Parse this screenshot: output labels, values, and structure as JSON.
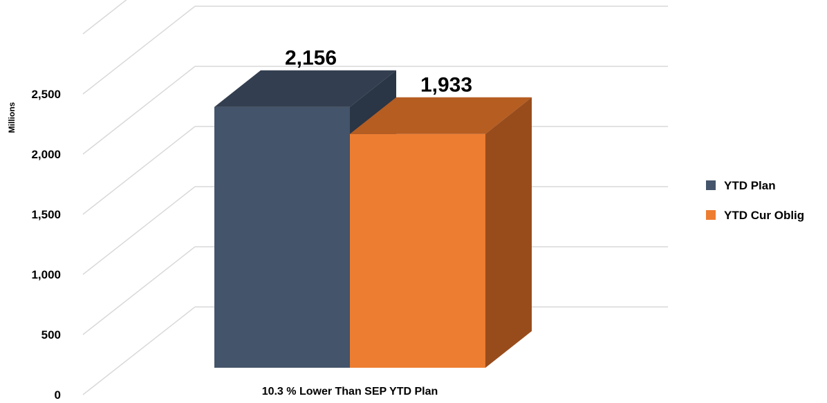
{
  "chart_data": {
    "type": "bar",
    "style": "3d-clustered-column",
    "categories": [
      "10.3 % Lower Than SEP YTD Plan"
    ],
    "series": [
      {
        "name": "YTD Plan",
        "values": [
          2156
        ],
        "color": "#44546A",
        "top_color": "#333F50",
        "side_color": "#2A3545"
      },
      {
        "name": "YTD Cur Oblig",
        "values": [
          1933
        ],
        "color": "#ED7D31",
        "top_color": "#B65D22",
        "side_color": "#984C1C"
      }
    ],
    "data_labels": [
      "2,156",
      "1,933"
    ],
    "ylabel": "Millions",
    "ylim": [
      0,
      2500
    ],
    "yticks": [
      0,
      500,
      1000,
      1500,
      2000,
      2500
    ],
    "ytick_labels": [
      "0",
      "500",
      "1,000",
      "1,500",
      "2,000",
      "2,500"
    ],
    "grid": true,
    "legend_position": "right"
  }
}
